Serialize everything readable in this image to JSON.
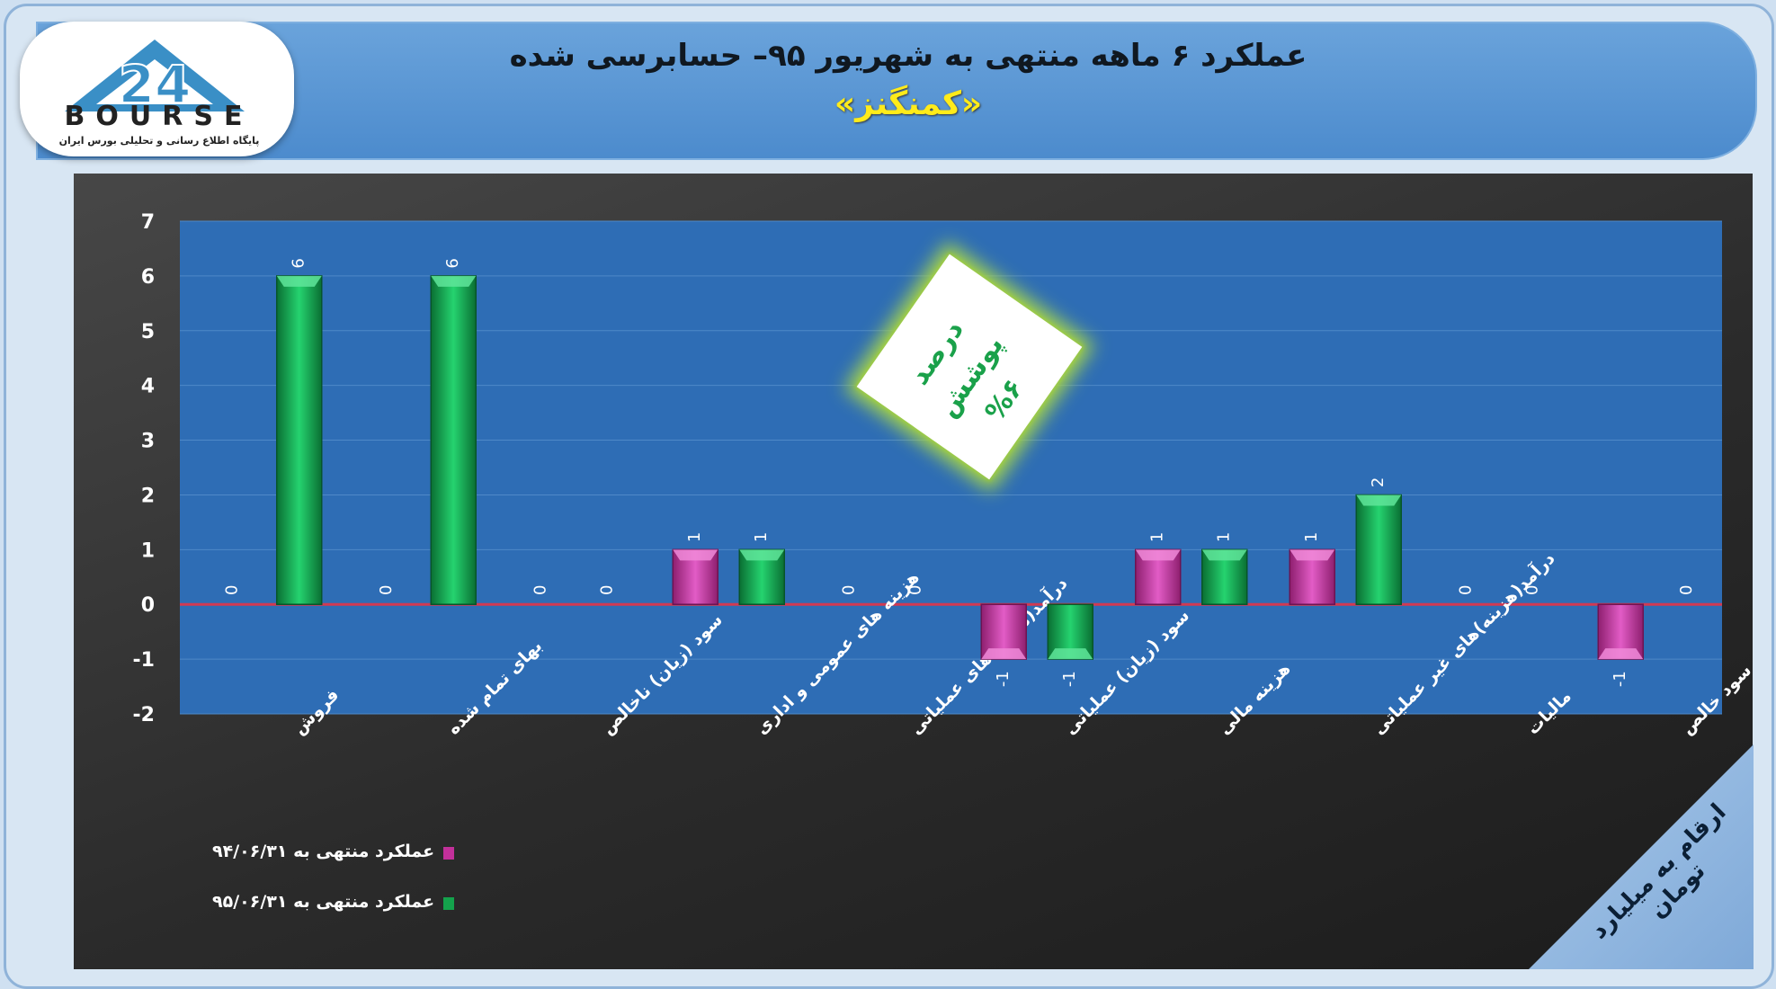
{
  "header": {
    "title": "عملکرد ۶ ماهه منتهی به شهریور ۹۵– حسابرسی شده",
    "subtitle": "«کمنگنز»"
  },
  "logo": {
    "mark": "24",
    "word": "BOURSE",
    "tagline": "پایگاه اطلاع رسانی و تحلیلی بورس ایران"
  },
  "coverage_badge": {
    "line1": "درصد پوشش",
    "line2": "%۶"
  },
  "units_note": "ارقام به میلیارد تومان",
  "colors": {
    "series_1": "#c2309a",
    "series_2": "#14a24c",
    "plot_bg": "#2e6db5",
    "zero_line": "#d23a52"
  },
  "chart_data": {
    "type": "bar",
    "categories": [
      "فروش",
      "بهای تمام شده",
      "سود (زیان) ناخالص",
      "هزینه های عمومی و اداری",
      "درآمد(هزینه)های عملیاتی",
      "سود (زیان) عملیاتی",
      "هزینه مالی",
      "درآمد(هزینه)های غیر عملیاتی",
      "مالیات",
      "سود خالص"
    ],
    "series": [
      {
        "name": "عملکرد منتهی به ۹۴/۰۶/۳۱",
        "values": [
          0,
          0,
          0,
          1,
          0,
          -1,
          1,
          1,
          0,
          -1
        ]
      },
      {
        "name": "عملکرد منتهی به ۹۵/۰۶/۳۱",
        "values": [
          6,
          6,
          0,
          1,
          0,
          -1,
          1,
          2,
          0,
          0
        ]
      }
    ],
    "yticks": [
      "7",
      "6",
      "5",
      "4",
      "3",
      "2",
      "1",
      "0",
      "-1",
      "-2"
    ],
    "ylim": [
      -2,
      7
    ],
    "grid": true,
    "legend": "bottom-left"
  }
}
